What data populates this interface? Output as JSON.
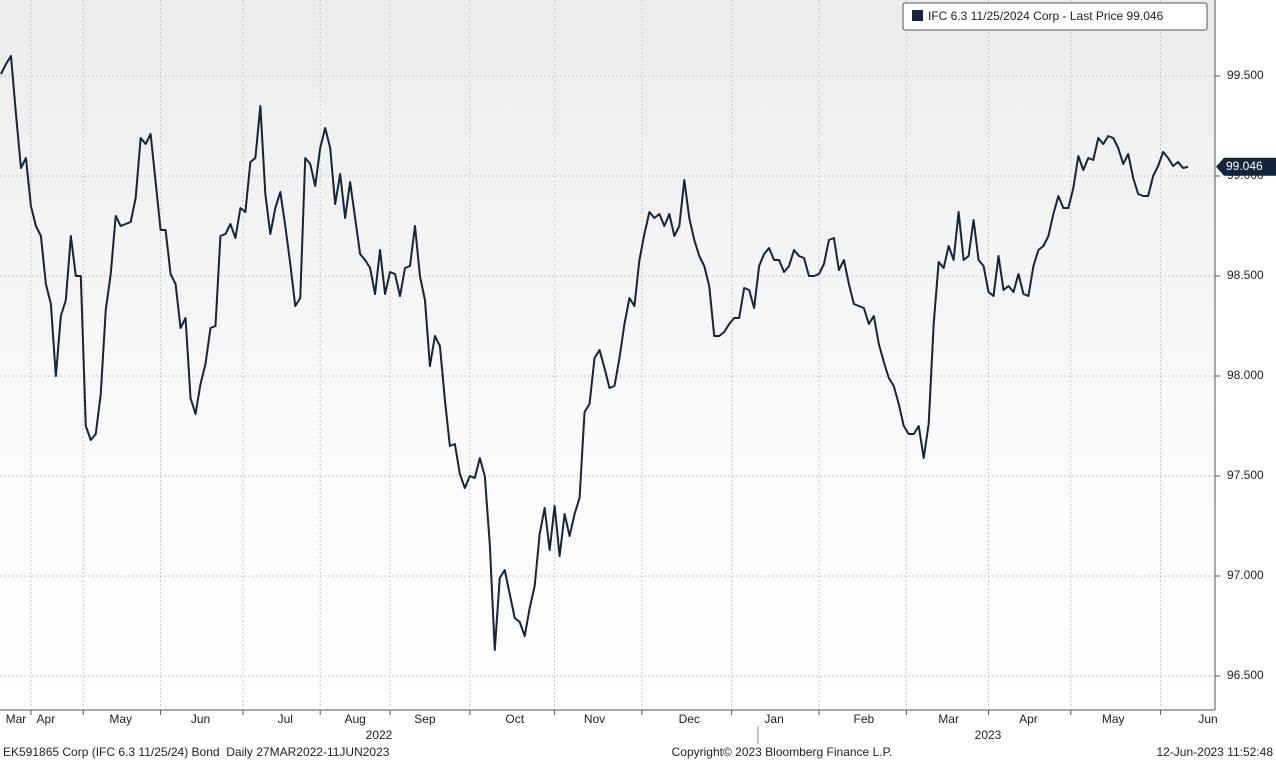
{
  "chart_data": {
    "type": "line",
    "series": [
      {
        "name": "IFC 6.3 11/25/2024 Corp - Last Price 99.046",
        "color": "#13243b",
        "values": [
          99.51,
          99.56,
          99.6,
          99.31,
          99.04,
          99.09,
          98.85,
          98.75,
          98.7,
          98.46,
          98.36,
          98.0,
          98.3,
          98.38,
          98.7,
          98.5,
          98.5,
          97.75,
          97.68,
          97.71,
          97.91,
          98.33,
          98.51,
          98.8,
          98.75,
          98.76,
          98.77,
          98.89,
          99.19,
          99.16,
          99.21,
          98.97,
          98.73,
          98.73,
          98.51,
          98.46,
          98.24,
          98.29,
          97.89,
          97.81,
          97.96,
          98.06,
          98.24,
          98.25,
          98.7,
          98.71,
          98.76,
          98.69,
          98.84,
          98.82,
          99.07,
          99.09,
          99.35,
          98.91,
          98.71,
          98.84,
          98.92,
          98.75,
          98.56,
          98.35,
          98.39,
          99.09,
          99.06,
          98.95,
          99.14,
          99.24,
          99.14,
          98.86,
          99.01,
          98.79,
          98.97,
          98.79,
          98.61,
          98.58,
          98.54,
          98.41,
          98.63,
          98.41,
          98.52,
          98.51,
          98.4,
          98.54,
          98.55,
          98.75,
          98.5,
          98.38,
          98.05,
          98.2,
          98.15,
          97.88,
          97.65,
          97.66,
          97.51,
          97.44,
          97.5,
          97.49,
          97.59,
          97.5,
          97.16,
          96.63,
          96.99,
          97.03,
          96.91,
          96.79,
          96.77,
          96.7,
          96.84,
          96.95,
          97.21,
          97.34,
          97.13,
          97.35,
          97.1,
          97.31,
          97.2,
          97.31,
          97.39,
          97.82,
          97.86,
          98.09,
          98.13,
          98.04,
          97.94,
          97.95,
          98.09,
          98.26,
          98.39,
          98.35,
          98.58,
          98.71,
          98.82,
          98.79,
          98.81,
          98.75,
          98.81,
          98.7,
          98.75,
          98.98,
          98.79,
          98.68,
          98.6,
          98.55,
          98.45,
          98.2,
          98.2,
          98.22,
          98.26,
          98.29,
          98.29,
          98.44,
          98.43,
          98.34,
          98.55,
          98.61,
          98.64,
          98.58,
          98.58,
          98.52,
          98.55,
          98.63,
          98.6,
          98.59,
          98.5,
          98.5,
          98.51,
          98.56,
          98.68,
          98.69,
          98.53,
          98.58,
          98.46,
          98.36,
          98.35,
          98.34,
          98.26,
          98.3,
          98.16,
          98.07,
          97.99,
          97.95,
          97.86,
          97.75,
          97.71,
          97.71,
          97.75,
          97.59,
          97.76,
          98.26,
          98.57,
          98.54,
          98.65,
          98.58,
          98.82,
          98.58,
          98.6,
          98.78,
          98.58,
          98.55,
          98.42,
          98.4,
          98.6,
          98.43,
          98.45,
          98.42,
          98.51,
          98.41,
          98.4,
          98.55,
          98.63,
          98.65,
          98.7,
          98.81,
          98.9,
          98.84,
          98.84,
          98.94,
          99.1,
          99.03,
          99.09,
          99.08,
          99.19,
          99.16,
          99.2,
          99.19,
          99.14,
          99.06,
          99.11,
          98.99,
          98.91,
          98.9,
          98.9,
          99.0,
          99.05,
          99.12,
          99.09,
          99.05,
          99.07,
          99.04,
          99.046,
          null,
          null,
          null,
          null
        ]
      }
    ],
    "categories": [
      null,
      null,
      null,
      "Mar",
      null,
      null,
      null,
      null,
      null,
      "Apr",
      null,
      null,
      null,
      null,
      null,
      null,
      null,
      null,
      null,
      null,
      null,
      null,
      null,
      null,
      "May",
      null,
      null,
      null,
      null,
      null,
      null,
      null,
      null,
      null,
      null,
      null,
      null,
      null,
      null,
      null,
      "Jun",
      null,
      null,
      null,
      null,
      null,
      null,
      null,
      null,
      null,
      null,
      null,
      null,
      null,
      null,
      null,
      null,
      "Jul",
      null,
      null,
      null,
      null,
      null,
      null,
      null,
      null,
      null,
      null,
      null,
      null,
      null,
      "Aug",
      null,
      null,
      null,
      null,
      null,
      null,
      null,
      null,
      null,
      null,
      null,
      null,
      null,
      "Sep",
      null,
      null,
      null,
      null,
      null,
      null,
      null,
      null,
      null,
      null,
      null,
      null,
      null,
      null,
      null,
      null,
      null,
      "Oct",
      null,
      null,
      null,
      null,
      null,
      null,
      null,
      null,
      null,
      null,
      null,
      null,
      null,
      null,
      null,
      "Nov",
      null,
      null,
      null,
      null,
      null,
      null,
      null,
      null,
      null,
      null,
      null,
      null,
      null,
      null,
      null,
      null,
      null,
      null,
      "Dec",
      null,
      null,
      null,
      null,
      null,
      null,
      null,
      null,
      null,
      null,
      null,
      null,
      null,
      null,
      null,
      null,
      "Jan",
      null,
      null,
      null,
      null,
      null,
      null,
      null,
      null,
      null,
      null,
      null,
      null,
      null,
      null,
      null,
      null,
      null,
      "Feb",
      null,
      null,
      null,
      null,
      null,
      null,
      null,
      null,
      null,
      null,
      null,
      null,
      null,
      null,
      null,
      null,
      "Mar",
      null,
      null,
      null,
      null,
      null,
      null,
      null,
      null,
      null,
      null,
      null,
      null,
      null,
      null,
      null,
      "Apr",
      null,
      null,
      null,
      null,
      null,
      null,
      null,
      null,
      null,
      null,
      null,
      null,
      null,
      null,
      null,
      null,
      "May",
      null,
      null,
      null,
      null,
      null,
      null,
      null,
      null,
      null,
      null,
      null,
      null,
      null,
      null,
      null,
      null,
      null,
      null,
      "Jun"
    ],
    "x_year_labels": [
      "2022",
      "2023"
    ],
    "ylim": [
      96.33,
      99.88
    ],
    "yticks": [
      {
        "value": 96.5,
        "label": "96.500"
      },
      {
        "value": 97,
        "label": "97.000"
      },
      {
        "value": 97.5,
        "label": "97.500"
      },
      {
        "value": 98,
        "label": "98.000"
      },
      {
        "value": 98.5,
        "label": "98.500"
      },
      {
        "value": 99,
        "label": "99.000"
      },
      {
        "value": 99.5,
        "label": "99.500"
      }
    ],
    "last_value_label": "99.046",
    "grid": true,
    "legend": "upper right"
  },
  "footer": {
    "left": "EK591865 Corp (IFC 6.3 11/25/24) Bond  Daily 27MAR2022-11JUN2023",
    "center": "Copyright© 2023 Bloomberg Finance L.P.",
    "right": "12-Jun-2023 11:52:48"
  }
}
